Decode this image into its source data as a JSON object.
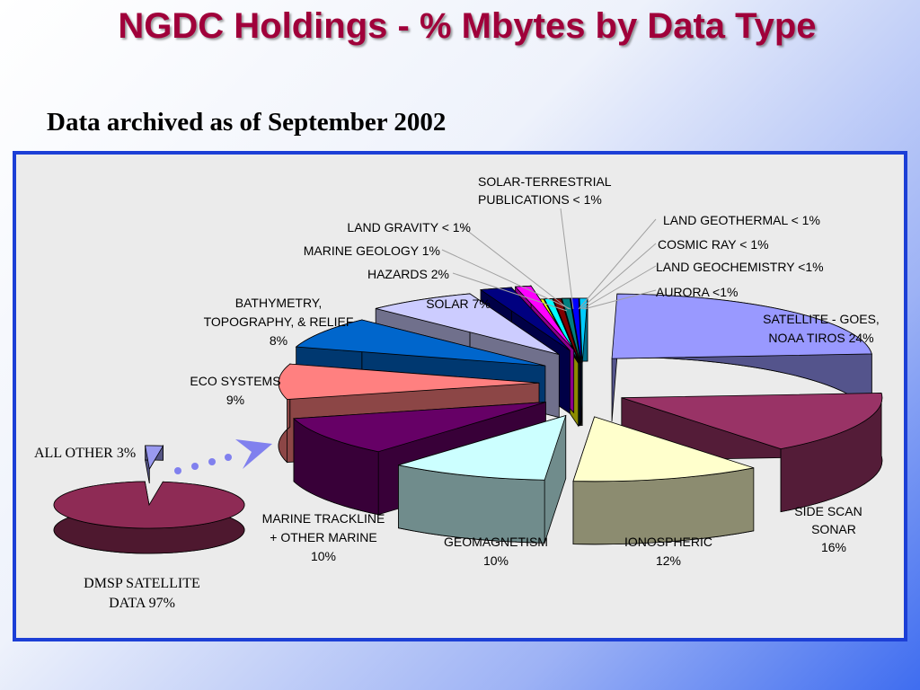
{
  "slide": {
    "title": "NGDC Holdings - % Mbytes by Data Type",
    "subtitle": "Data archived as of September 2002"
  },
  "colors": {
    "title": "#a0003a",
    "frame_border": "#1c3fd6",
    "frame_bg": "#ebebeb",
    "arrow": "#7f7ff0"
  },
  "chart_data": [
    {
      "type": "pie",
      "title": "",
      "slices": [
        {
          "label": "DMSP SATELLITE DATA",
          "value": 97,
          "value_text": "97%",
          "color": "#8e2b55"
        },
        {
          "label": "ALL OTHER",
          "value": 3,
          "value_text": "3%",
          "color": "#9a9af0"
        }
      ]
    },
    {
      "type": "pie",
      "title": "",
      "note": "exploded 3D breakdown of ALL OTHER",
      "slices": [
        {
          "label": "SATELLITE - GOES, NOAA TIROS",
          "value": 24,
          "value_text": "24%",
          "color": "#9999ff"
        },
        {
          "label": "SIDE SCAN SONAR",
          "value": 16,
          "value_text": "16%",
          "color": "#993366"
        },
        {
          "label": "IONOSPHERIC",
          "value": 12,
          "value_text": "12%",
          "color": "#ffffcc"
        },
        {
          "label": "GEOMAGNETISM",
          "value": 10,
          "value_text": "10%",
          "color": "#ccffff"
        },
        {
          "label": "MARINE TRACKLINE + OTHER MARINE",
          "value": 10,
          "value_text": "10%",
          "color": "#660066"
        },
        {
          "label": "ECO SYSTEMS",
          "value": 9,
          "value_text": "9%",
          "color": "#ff8080"
        },
        {
          "label": "BATHYMETRY, TOPOGRAPHY, & RELIEF",
          "value": 8,
          "value_text": "8%",
          "color": "#0066cc"
        },
        {
          "label": "SOLAR",
          "value": 7,
          "value_text": "7%",
          "color": "#ccccff"
        },
        {
          "label": "HAZARDS",
          "value": 2,
          "value_text": "2%",
          "color": "#000080"
        },
        {
          "label": "MARINE GEOLOGY",
          "value": 1,
          "value_text": "1%",
          "color": "#ff00ff"
        },
        {
          "label": "LAND GRAVITY",
          "value": 0.5,
          "value_text": "< 1%",
          "color": "#ffff00"
        },
        {
          "label": "SOLAR-TERRESTRIAL PUBLICATIONS",
          "value": 0.5,
          "value_text": "< 1%",
          "color": "#00ffff"
        },
        {
          "label": "LAND GEOTHERMAL",
          "value": 0.5,
          "value_text": "< 1%",
          "color": "#800000"
        },
        {
          "label": "COSMIC RAY",
          "value": 0.5,
          "value_text": "< 1%",
          "color": "#008080"
        },
        {
          "label": "LAND GEOCHEMISTRY",
          "value": 0.5,
          "value_text": "<1%",
          "color": "#0000ff"
        },
        {
          "label": "AURORA",
          "value": 0.5,
          "value_text": "<1%",
          "color": "#00ccff"
        }
      ]
    }
  ],
  "labels": {
    "all_other": "ALL OTHER  3%",
    "dmsp_1": "DMSP SATELLITE",
    "dmsp_2": "DATA  97%",
    "satellite_1": "SATELLITE - GOES,",
    "satellite_2": "NOAA TIROS  24%",
    "sidescan_1": "SIDE SCAN",
    "sidescan_2": "SONAR",
    "sidescan_3": "16%",
    "ionospheric_1": "IONOSPHERIC",
    "ionospheric_2": "12%",
    "geomagnetism_1": "GEOMAGNETISM",
    "geomagnetism_2": "10%",
    "marine_1": "MARINE TRACKLINE",
    "marine_2": "+ OTHER MARINE",
    "marine_3": "10%",
    "eco_1": "ECO SYSTEMS",
    "eco_2": "9%",
    "bathy_1": "BATHYMETRY,",
    "bathy_2": "TOPOGRAPHY, & RELIEF",
    "bathy_3": "8%",
    "solar": "SOLAR 7%",
    "hazards": "HAZARDS 2%",
    "marine_geology": "MARINE GEOLOGY 1%",
    "land_gravity": "LAND GRAVITY < 1%",
    "solar_terr_1": "SOLAR-TERRESTRIAL",
    "solar_terr_2": "PUBLICATIONS < 1%",
    "land_geothermal": "LAND GEOTHERMAL < 1%",
    "cosmic_ray": "COSMIC RAY < 1%",
    "land_geochem": "LAND GEOCHEMISTRY <1%",
    "aurora": "AURORA <1%"
  }
}
